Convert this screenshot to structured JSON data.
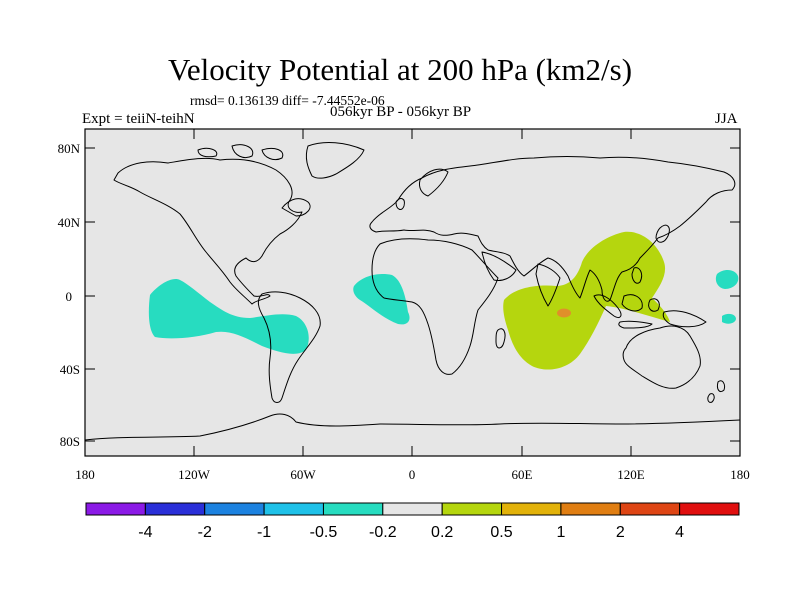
{
  "header": {
    "title": "Velocity Potential at 200 hPa (km2/s)",
    "stats": "rmsd= 0.136139 diff= -7.44552e-06",
    "expt": "Expt = teiiN-teihN",
    "subtitle": "056kyr BP - 056kyr BP",
    "season": "JJA"
  },
  "axes": {
    "lat_labels": [
      "80N",
      "40N",
      "0",
      "40S",
      "80S"
    ],
    "lon_labels": [
      "180",
      "120W",
      "60W",
      "0",
      "60E",
      "120E",
      "180"
    ]
  },
  "colors": {
    "background": "#e6e6e6",
    "negative_anomaly": "#27dcc0",
    "positive_anomaly": "#b5d60e",
    "peak_anomaly": "#e08f2a",
    "coastline": "#000000"
  },
  "colorbar": {
    "labels": [
      "-4",
      "-2",
      "-1",
      "-0.5",
      "-0.2",
      "0.2",
      "0.5",
      "1",
      "2",
      "4"
    ],
    "colors": [
      "#8b1ae6",
      "#2a2fd8",
      "#1c82e0",
      "#1fc1e8",
      "#27dcc0",
      "#e6e6e6",
      "#b5d60e",
      "#e2b20a",
      "#e07e12",
      "#de4514",
      "#e00f0f"
    ]
  },
  "chart_data": {
    "type": "map",
    "title": "Velocity Potential at 200 hPa (km2/s)",
    "projection": "cylindrical-equidistant",
    "lon_range": [
      -180,
      180
    ],
    "lat_range": [
      -90,
      90
    ],
    "contour_levels": [
      -4,
      -2,
      -1,
      -0.5,
      -0.2,
      0.2,
      0.5,
      1,
      2,
      4
    ],
    "regions": [
      {
        "name": "tropical eastern Pacific",
        "range": "-0.5 to -0.2",
        "center_lon": -115,
        "center_lat": -5
      },
      {
        "name": "western South America",
        "range": "-0.5 to -0.2",
        "center_lon": -75,
        "center_lat": -18
      },
      {
        "name": "tropical Atlantic / West Africa",
        "range": "-0.5 to -0.2",
        "center_lon": -10,
        "center_lat": 0
      },
      {
        "name": "western Pacific near dateline",
        "range": "-0.5 to -0.2",
        "center_lon": 170,
        "center_lat": 0
      },
      {
        "name": "Indian Ocean / Maritime Continent",
        "range": "0.2 to 0.5",
        "center_lon": 80,
        "center_lat": -5
      },
      {
        "name": "central Indian Ocean peak",
        "range": "0.5 to 1",
        "center_lon": 80,
        "center_lat": -10
      }
    ]
  }
}
